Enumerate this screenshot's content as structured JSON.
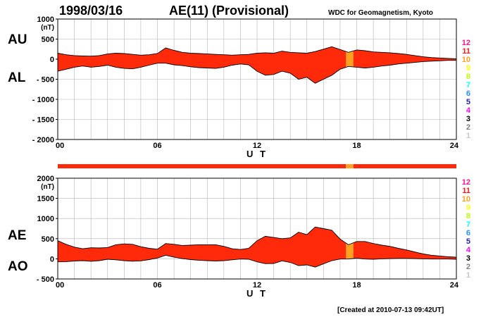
{
  "header": {
    "date": "1998/03/16",
    "title": "AE(11) (Provisional)",
    "source": "WDC for Geomagnetism, Kyoto",
    "created": "[Created at 2010-07-13 09:42UT]"
  },
  "colors": {
    "fill_main": "#ff2a0a",
    "fill_10": "#ffa020",
    "fill_11": "#ff1a1a",
    "outline": "#000000",
    "grid": "#b4b4b4"
  },
  "legend": [
    {
      "label": "12",
      "color": "#ff1493"
    },
    {
      "label": "11",
      "color": "#ff1a1a"
    },
    {
      "label": "10",
      "color": "#ffa020"
    },
    {
      "label": "9",
      "color": "#ffff00"
    },
    {
      "label": "8",
      "color": "#bfff00"
    },
    {
      "label": "7",
      "color": "#00ffff"
    },
    {
      "label": "6",
      "color": "#1e90ff"
    },
    {
      "label": "5",
      "color": "#2020c0"
    },
    {
      "label": "4",
      "color": "#ff00ff"
    },
    {
      "label": "3",
      "color": "#000000"
    },
    {
      "label": "2",
      "color": "#808080"
    },
    {
      "label": "1",
      "color": "#c8c8c8"
    }
  ],
  "chart_data": [
    {
      "type": "area",
      "name": "au-al-panel",
      "side_labels": [
        "AU",
        "AL"
      ],
      "unit": "(nT)",
      "xlabel": "U T",
      "xlim": [
        0,
        24
      ],
      "xticks": [
        0,
        6,
        12,
        18,
        24
      ],
      "xtick_labels": [
        "00",
        "06",
        "12",
        "18",
        "24"
      ],
      "ylim": [
        -2000,
        1000
      ],
      "yticks": [
        1000,
        500,
        0,
        -500,
        -1000,
        -1500,
        -2000
      ],
      "ytick_labels": [
        "1000",
        "500",
        "0",
        "- 500",
        "- 1000",
        "- 1500",
        "- 2000"
      ],
      "grid": true,
      "x": [
        0,
        0.5,
        1,
        1.5,
        2,
        2.5,
        3,
        3.5,
        4,
        4.5,
        5,
        5.5,
        6,
        6.5,
        7,
        7.5,
        8,
        8.5,
        9,
        9.5,
        10,
        10.5,
        11,
        11.5,
        12,
        12.5,
        13,
        13.5,
        14,
        14.5,
        15,
        15.5,
        16,
        16.5,
        17,
        17.5,
        18,
        18.5,
        19,
        19.5,
        20,
        20.5,
        21,
        21.5,
        22,
        22.5,
        23,
        23.5,
        24
      ],
      "series": [
        {
          "name": "AU",
          "values": [
            150,
            110,
            90,
            80,
            75,
            90,
            130,
            150,
            140,
            120,
            100,
            110,
            140,
            280,
            220,
            170,
            150,
            140,
            130,
            120,
            110,
            100,
            110,
            120,
            150,
            160,
            150,
            200,
            170,
            160,
            150,
            190,
            250,
            310,
            240,
            170,
            230,
            210,
            180,
            170,
            160,
            140,
            120,
            90,
            60,
            40,
            30,
            20,
            10
          ]
        },
        {
          "name": "AL",
          "values": [
            -300,
            -250,
            -200,
            -170,
            -200,
            -180,
            -150,
            -200,
            -230,
            -240,
            -200,
            -150,
            -100,
            -100,
            -140,
            -160,
            -190,
            -210,
            -220,
            -230,
            -200,
            -150,
            -120,
            -140,
            -300,
            -400,
            -380,
            -300,
            -350,
            -500,
            -450,
            -600,
            -500,
            -400,
            -250,
            -180,
            -200,
            -220,
            -200,
            -170,
            -150,
            -120,
            -100,
            -80,
            -60,
            -50,
            -40,
            -30,
            -30
          ]
        }
      ]
    },
    {
      "type": "area",
      "name": "ae-ao-panel",
      "side_labels": [
        "AE",
        "AO"
      ],
      "unit": "(nT)",
      "xlabel": "U T",
      "xlim": [
        0,
        24
      ],
      "xticks": [
        0,
        6,
        12,
        18,
        24
      ],
      "xtick_labels": [
        "00",
        "06",
        "12",
        "18",
        "24"
      ],
      "ylim": [
        -500,
        2000
      ],
      "yticks": [
        2000,
        1500,
        1000,
        500,
        0,
        -500
      ],
      "ytick_labels": [
        "2000",
        "1500",
        "1000",
        "500",
        "0",
        "- 500"
      ],
      "grid": true,
      "x": [
        0,
        0.5,
        1,
        1.5,
        2,
        2.5,
        3,
        3.5,
        4,
        4.5,
        5,
        5.5,
        6,
        6.5,
        7,
        7.5,
        8,
        8.5,
        9,
        9.5,
        10,
        10.5,
        11,
        11.5,
        12,
        12.5,
        13,
        13.5,
        14,
        14.5,
        15,
        15.5,
        16,
        16.5,
        17,
        17.5,
        18,
        18.5,
        19,
        19.5,
        20,
        20.5,
        21,
        21.5,
        22,
        22.5,
        23,
        23.5,
        24
      ],
      "series": [
        {
          "name": "AE",
          "values": [
            450,
            360,
            290,
            250,
            275,
            270,
            280,
            350,
            370,
            360,
            300,
            260,
            240,
            380,
            360,
            330,
            340,
            350,
            350,
            350,
            310,
            250,
            230,
            260,
            450,
            560,
            530,
            500,
            520,
            660,
            600,
            790,
            750,
            710,
            490,
            350,
            430,
            430,
            380,
            340,
            310,
            260,
            220,
            170,
            120,
            90,
            70,
            50,
            40
          ]
        },
        {
          "name": "AO",
          "values": [
            -75,
            -70,
            -55,
            -45,
            -62,
            -45,
            -10,
            -25,
            -45,
            -60,
            -50,
            -20,
            20,
            90,
            40,
            5,
            -20,
            -35,
            -45,
            -55,
            -45,
            -25,
            -5,
            -10,
            -75,
            -120,
            -115,
            -50,
            -90,
            -170,
            -150,
            -205,
            -125,
            -45,
            -5,
            -5,
            15,
            -5,
            -10,
            0,
            5,
            10,
            10,
            5,
            0,
            -5,
            -5,
            -5,
            -10
          ]
        }
      ]
    }
  ],
  "activity_bar": {
    "segments": [
      {
        "from": 0,
        "to": 17.35,
        "level": "11"
      },
      {
        "from": 17.35,
        "to": 17.8,
        "level": "10"
      },
      {
        "from": 17.8,
        "to": 24,
        "level": "11"
      }
    ]
  },
  "highlight_bands": [
    {
      "from": 17.35,
      "to": 17.8,
      "level": "10"
    }
  ]
}
